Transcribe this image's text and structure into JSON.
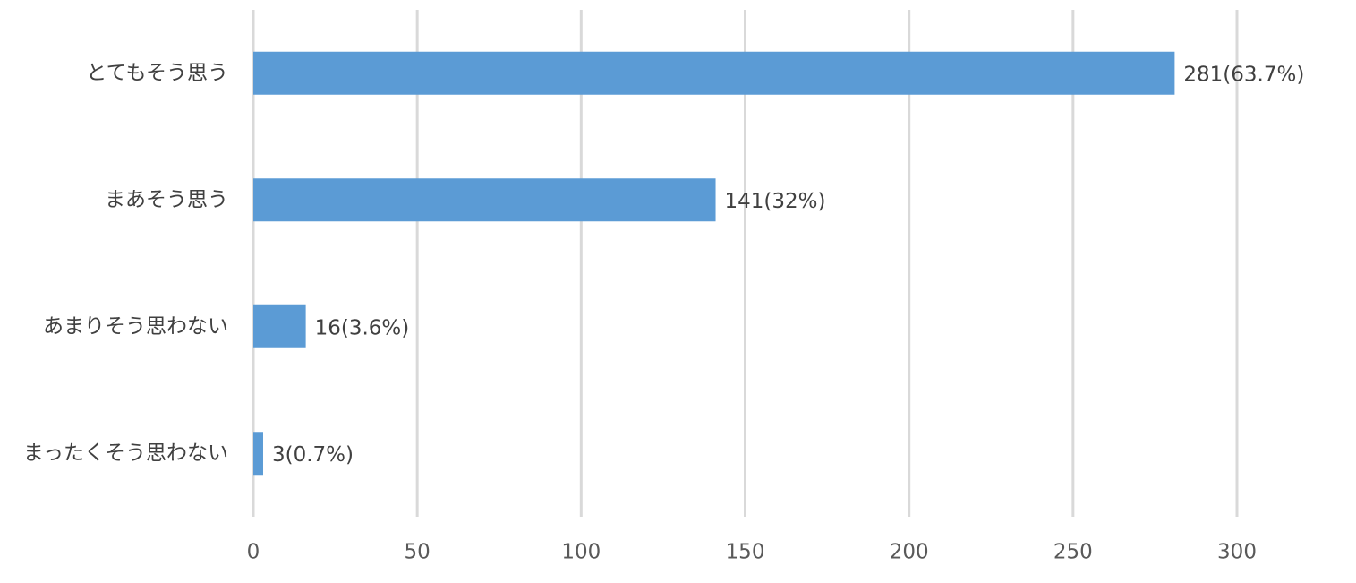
{
  "chart_data": {
    "type": "hbar",
    "categories": [
      "とてもそう思う",
      "まあそう思う",
      "あまりそう思わない",
      "まったくそう思わない"
    ],
    "values": [
      281,
      141,
      16,
      3
    ],
    "value_labels": [
      "281(63.7%)",
      "141(32%)",
      "16(3.6%)",
      "3(0.7%)"
    ],
    "color": "#5b9bd5",
    "xlim": [
      0,
      300
    ],
    "xticks": [
      0,
      50,
      100,
      150,
      200,
      250,
      300
    ],
    "grid": true
  }
}
